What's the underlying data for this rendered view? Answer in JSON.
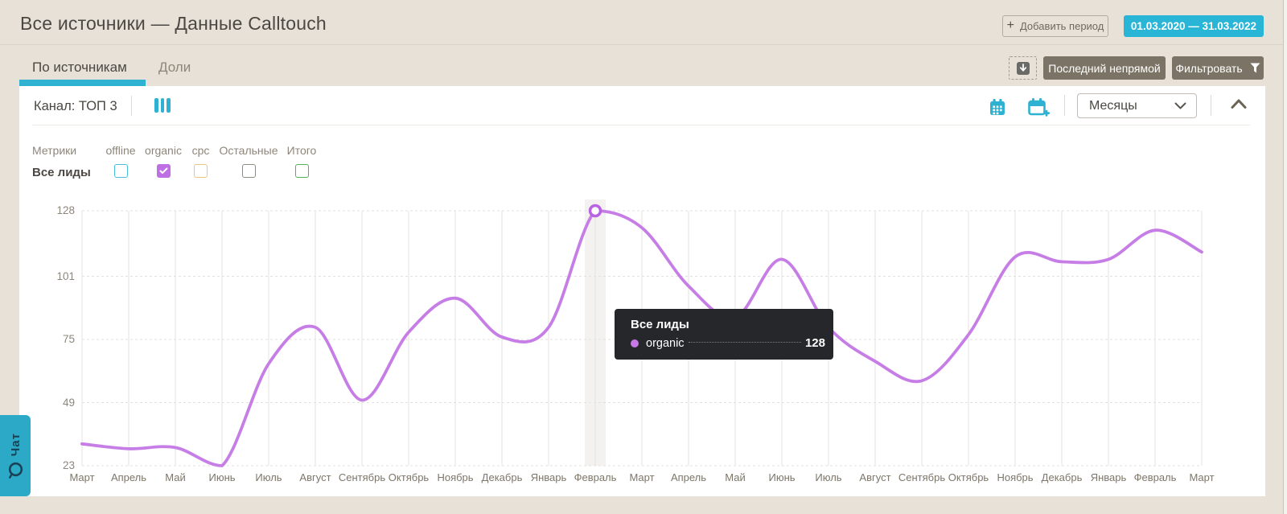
{
  "header": {
    "title": "Все источники — Данные Calltouch",
    "add_period_label": "Добавить период",
    "date_range": "01.03.2020 — 31.03.2022"
  },
  "tabs": {
    "sources": "По источникам",
    "shares": "Доли"
  },
  "toolbar": {
    "attribution_label": "Последний непрямой",
    "filter_label": "Фильтровать"
  },
  "controls": {
    "channel_label": "Канал: ТОП 3",
    "granularity_value": "Месяцы"
  },
  "metrics": {
    "row_header": "Метрики",
    "row_label": "Все лиды",
    "columns": [
      {
        "label": "offline",
        "checked": false,
        "color": "#4cbdd9"
      },
      {
        "label": "organic",
        "checked": true,
        "color": "#bd6fe3"
      },
      {
        "label": "cpc",
        "checked": false,
        "color": "#eac87e"
      },
      {
        "label": "Остальные",
        "checked": false,
        "color": "#908b81"
      },
      {
        "label": "Итого",
        "checked": false,
        "color": "#52b35a"
      }
    ]
  },
  "tooltip": {
    "title": "Все лиды",
    "series": "organic",
    "value": "128",
    "dot_color": "#c678e6"
  },
  "chat": {
    "label": "Чат"
  },
  "colors": {
    "accent_teal": "#2fb2d1",
    "badge_cyan": "#29b5d6",
    "button_gray": "#7b7365",
    "line_purple": "#c67ee6",
    "page_bg": "#e7e1d8"
  },
  "chart_data": {
    "type": "line",
    "x_labels": [
      "Март",
      "Апрель",
      "Май",
      "Июнь",
      "Июль",
      "Август",
      "Сентябрь",
      "Октябрь",
      "Ноябрь",
      "Декабрь",
      "Январь",
      "Февраль",
      "Март",
      "Апрель",
      "Май",
      "Июнь",
      "Июль",
      "Август",
      "Сентябрь",
      "Октябрь",
      "Ноябрь",
      "Декабрь",
      "Январь",
      "Февраль",
      "Март"
    ],
    "y_ticks": [
      23,
      49,
      75,
      101,
      128
    ],
    "ylim": [
      23,
      128
    ],
    "series": [
      {
        "name": "organic",
        "color": "#c67ee6",
        "values": [
          32,
          30,
          30.5,
          23,
          65,
          80,
          50,
          78,
          92,
          76,
          80,
          128,
          121,
          97,
          84,
          108,
          80,
          66,
          58,
          77,
          109,
          107,
          108,
          120,
          111
        ]
      }
    ],
    "highlighted_point": {
      "index": 11,
      "label": "Февраль",
      "value": 128
    },
    "grid": {
      "vertical": true,
      "horizontal_dashed": true
    }
  }
}
